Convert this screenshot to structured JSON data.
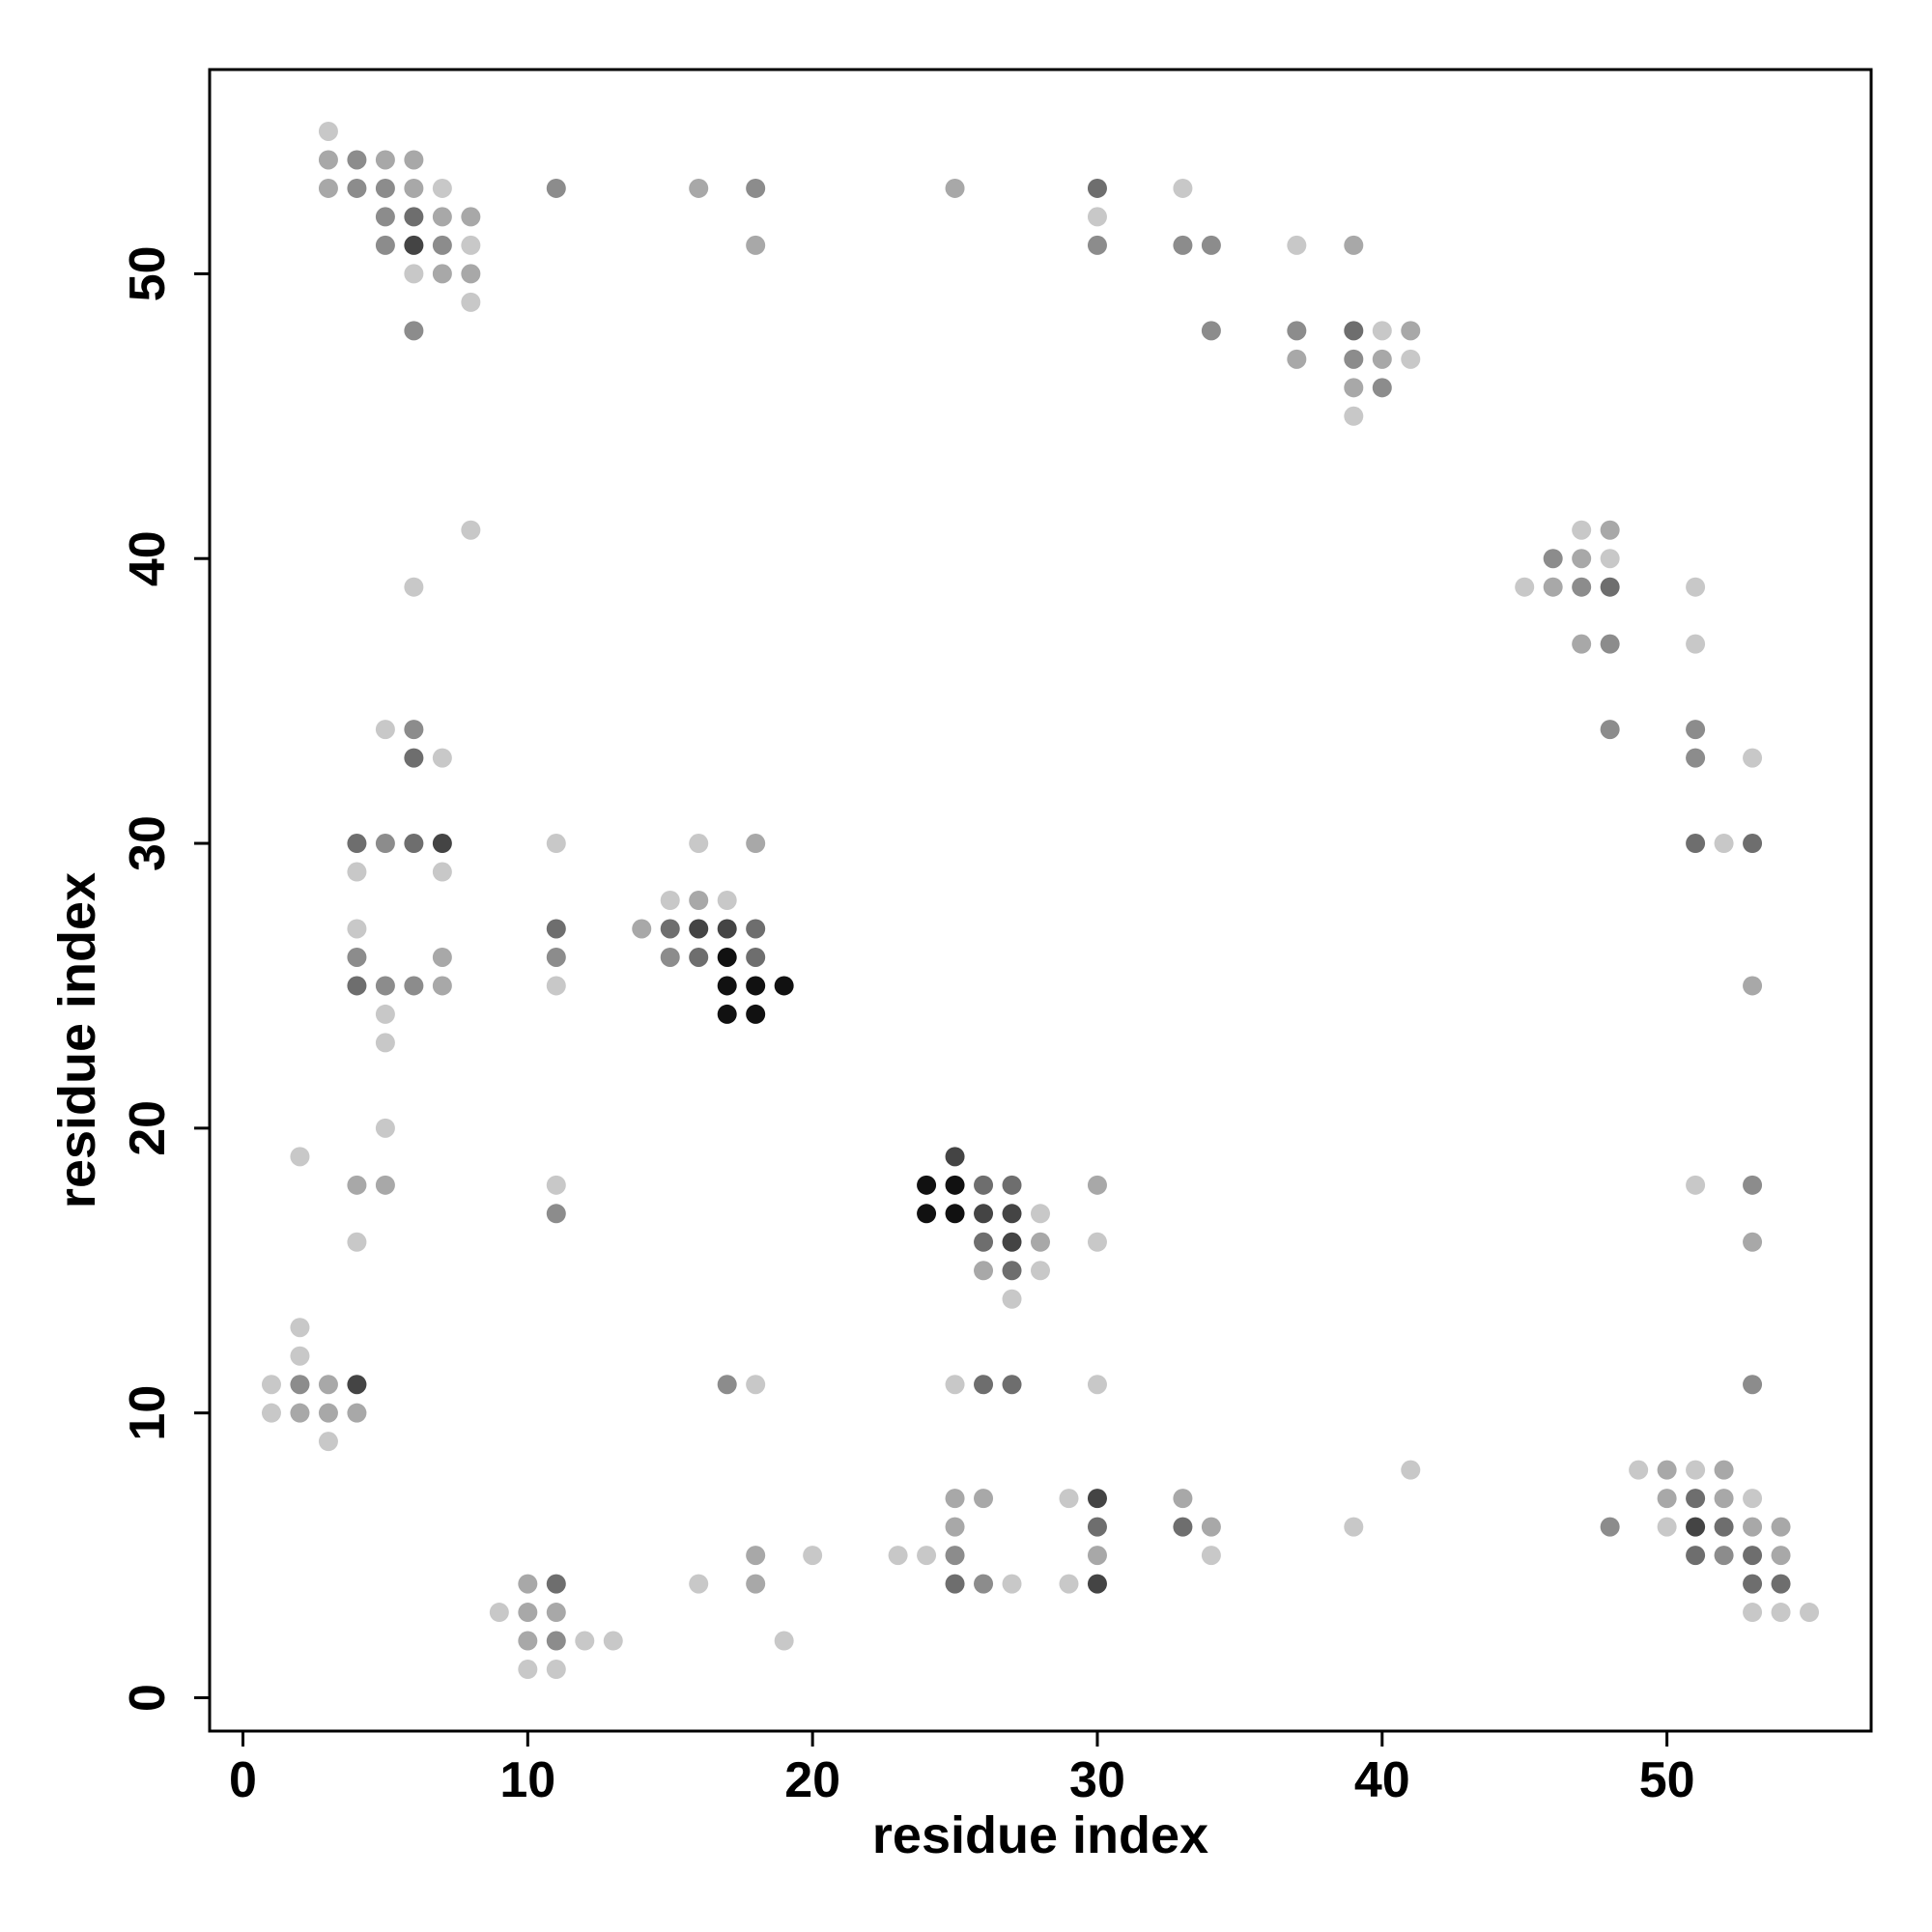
{
  "chart_data": {
    "type": "scatter",
    "x_label": "residue index",
    "y_label": "residue index",
    "xlim": [
      -1.17,
      57.17
    ],
    "ylim": [
      -1.17,
      57.17
    ],
    "xticks": [
      0,
      10,
      20,
      30,
      40,
      50
    ],
    "yticks": [
      0,
      10,
      20,
      30,
      40,
      50
    ],
    "series": [
      {
        "color": "#c8c8c8",
        "x": [
          3,
          7,
          33,
          30,
          8,
          37,
          6,
          8,
          40,
          41,
          39,
          8,
          47,
          48,
          6,
          45,
          51,
          51,
          5,
          7,
          53,
          11,
          16,
          52,
          4,
          7,
          15,
          17,
          4,
          11,
          5,
          5,
          5,
          2,
          11,
          51,
          28,
          4,
          30,
          28,
          27,
          2,
          2,
          1,
          18,
          25,
          30,
          1,
          3,
          41,
          49,
          51,
          29,
          53,
          39,
          50,
          20,
          23,
          24,
          34,
          16,
          27,
          29,
          9,
          53,
          54,
          55,
          12,
          13,
          19,
          10,
          11
        ],
        "y": [
          55,
          53,
          53,
          52,
          51,
          51,
          50,
          49,
          48,
          47,
          45,
          41,
          41,
          40,
          39,
          39,
          39,
          37,
          34,
          33,
          33,
          30,
          30,
          30,
          29,
          29,
          28,
          28,
          27,
          25,
          24,
          23,
          20,
          19,
          18,
          18,
          17,
          16,
          16,
          15,
          14,
          13,
          12,
          11,
          11,
          11,
          11,
          10,
          9,
          8,
          8,
          8,
          7,
          7,
          6,
          6,
          5,
          5,
          5,
          5,
          4,
          4,
          4,
          3,
          3,
          3,
          3,
          2,
          2,
          2,
          1,
          1
        ]
      },
      {
        "color": "#a8a8a8",
        "x": [
          3,
          5,
          6,
          3,
          6,
          16,
          25,
          7,
          8,
          18,
          39,
          7,
          8,
          41,
          37,
          40,
          39,
          48,
          47,
          46,
          47,
          18,
          16,
          14,
          7,
          7,
          53,
          4,
          5,
          30,
          28,
          53,
          26,
          3,
          2,
          3,
          4,
          50,
          52,
          25,
          26,
          33,
          50,
          52,
          25,
          34,
          53,
          54,
          18,
          30,
          54,
          10,
          18,
          10,
          11,
          10
        ],
        "y": [
          54,
          54,
          54,
          53,
          53,
          53,
          53,
          52,
          52,
          51,
          51,
          50,
          50,
          48,
          47,
          47,
          46,
          41,
          40,
          39,
          37,
          30,
          28,
          27,
          26,
          25,
          25,
          18,
          18,
          18,
          16,
          16,
          15,
          11,
          10,
          10,
          10,
          8,
          8,
          7,
          7,
          7,
          7,
          7,
          6,
          6,
          6,
          6,
          5,
          5,
          5,
          4,
          4,
          3,
          3,
          2
        ]
      },
      {
        "color": "#8c8c8c",
        "x": [
          4,
          4,
          5,
          11,
          18,
          5,
          5,
          7,
          30,
          33,
          34,
          6,
          34,
          37,
          39,
          40,
          46,
          47,
          48,
          6,
          48,
          51,
          51,
          5,
          4,
          11,
          15,
          5,
          6,
          53,
          11,
          2,
          17,
          53,
          48,
          25,
          52,
          26,
          11
        ],
        "y": [
          54,
          53,
          53,
          53,
          53,
          52,
          51,
          51,
          51,
          51,
          51,
          48,
          48,
          48,
          47,
          46,
          40,
          39,
          37,
          34,
          34,
          34,
          33,
          30,
          26,
          26,
          26,
          25,
          25,
          18,
          17,
          11,
          11,
          11,
          6,
          5,
          5,
          4,
          2
        ]
      },
      {
        "color": "#6e6e6e",
        "x": [
          30,
          6,
          39,
          48,
          6,
          4,
          6,
          51,
          53,
          11,
          15,
          18,
          16,
          18,
          4,
          26,
          27,
          26,
          27,
          26,
          27,
          51,
          30,
          33,
          52,
          51,
          53,
          11,
          25,
          53,
          54
        ],
        "y": [
          53,
          52,
          48,
          39,
          33,
          30,
          30,
          30,
          30,
          27,
          27,
          27,
          26,
          26,
          25,
          18,
          18,
          16,
          15,
          11,
          11,
          7,
          6,
          6,
          6,
          5,
          5,
          4,
          4,
          4,
          4
        ]
      },
      {
        "color": "#444444",
        "x": [
          6,
          7,
          16,
          17,
          25,
          26,
          27,
          27,
          4,
          30,
          51,
          30
        ],
        "y": [
          51,
          30,
          27,
          27,
          19,
          17,
          17,
          16,
          11,
          7,
          6,
          4
        ]
      },
      {
        "color": "#111111",
        "x": [
          17,
          17,
          18,
          19,
          17,
          18,
          24,
          25,
          24,
          25
        ],
        "y": [
          26,
          25,
          25,
          25,
          24,
          24,
          18,
          18,
          17,
          17
        ]
      }
    ]
  }
}
